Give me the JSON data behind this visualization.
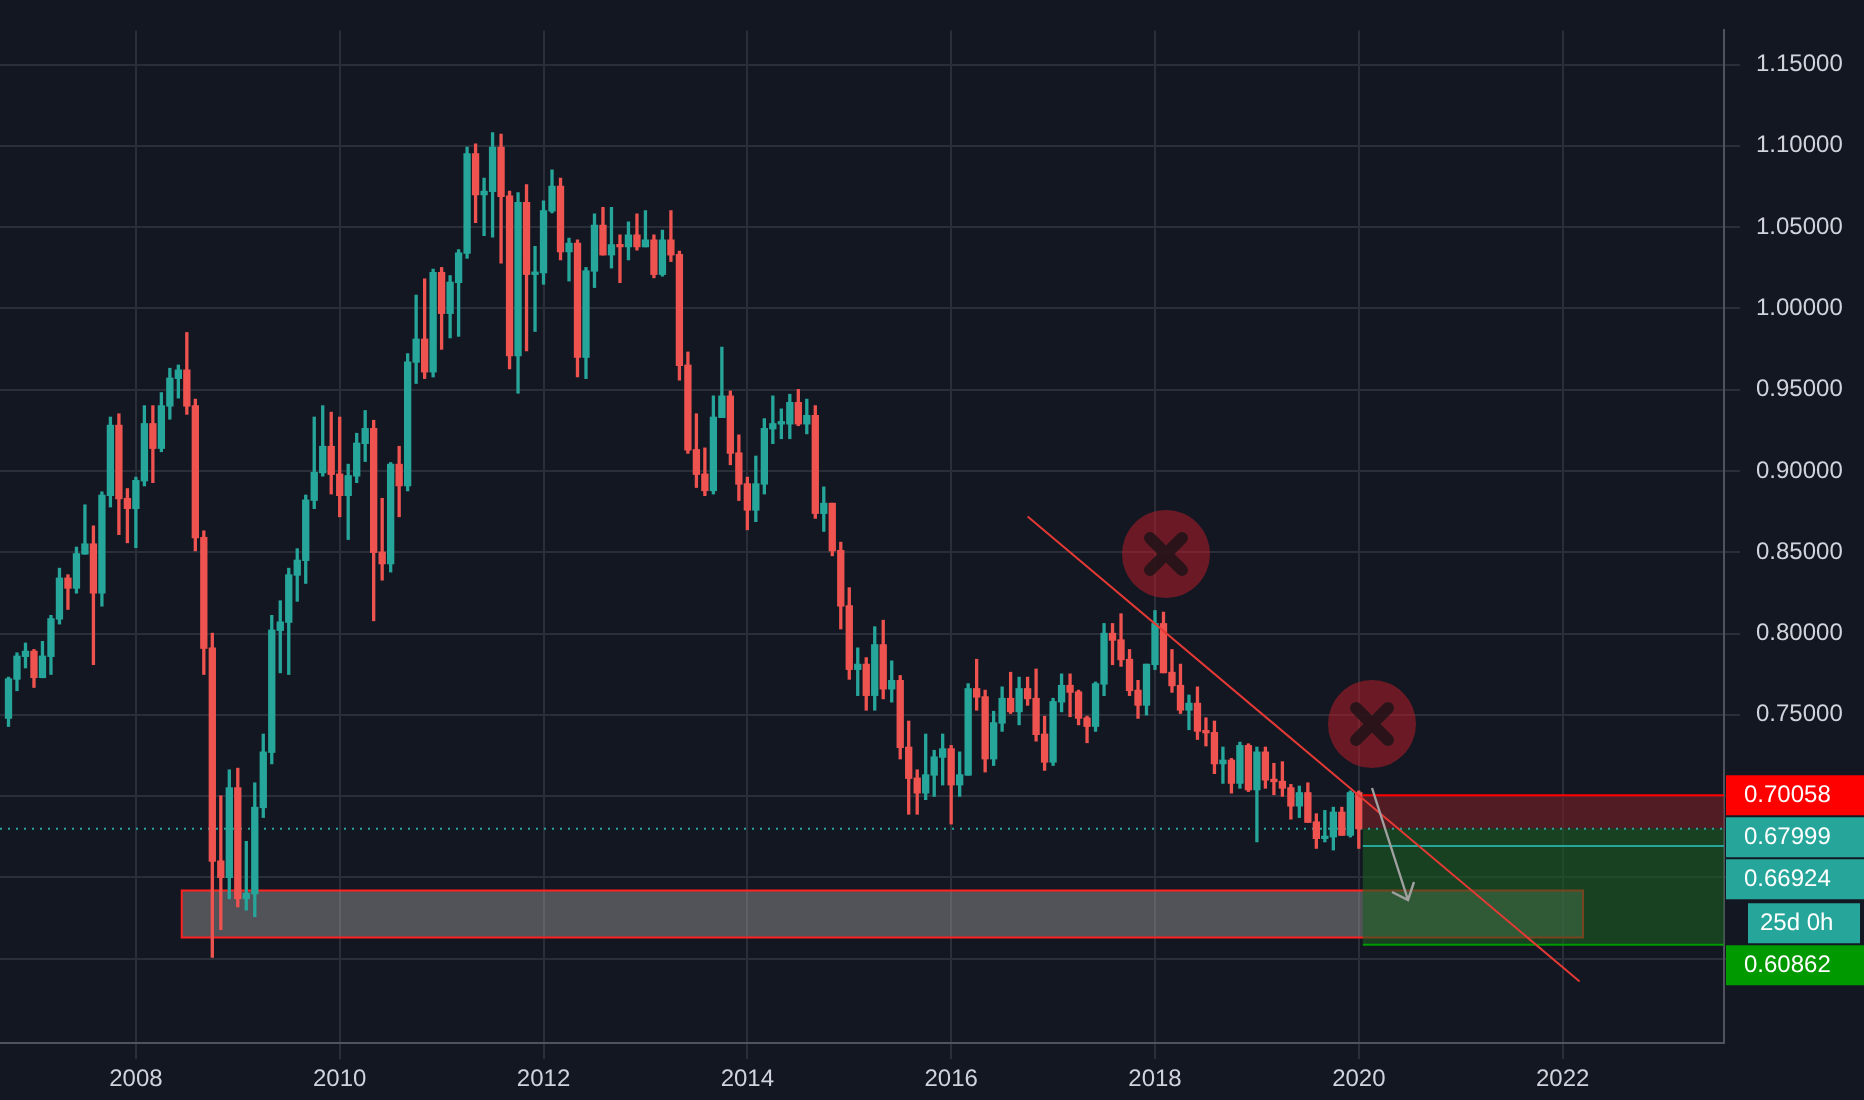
{
  "chart_data": {
    "type": "candlestick",
    "x": [
      "2006-10",
      "2006-11",
      "2006-12",
      "2007-01",
      "2007-02",
      "2007-03",
      "2007-04",
      "2007-05",
      "2007-06",
      "2007-07",
      "2007-08",
      "2007-09",
      "2007-10",
      "2007-11",
      "2007-12",
      "2008-01",
      "2008-02",
      "2008-03",
      "2008-04",
      "2008-05",
      "2008-06",
      "2008-07",
      "2008-08",
      "2008-09",
      "2008-10",
      "2008-11",
      "2008-12",
      "2009-01",
      "2009-02",
      "2009-03",
      "2009-04",
      "2009-05",
      "2009-06",
      "2009-07",
      "2009-08",
      "2009-09",
      "2009-10",
      "2009-11",
      "2009-12",
      "2010-01",
      "2010-02",
      "2010-03",
      "2010-04",
      "2010-05",
      "2010-06",
      "2010-07",
      "2010-08",
      "2010-09",
      "2010-10",
      "2010-11",
      "2010-12",
      "2011-01",
      "2011-02",
      "2011-03",
      "2011-04",
      "2011-05",
      "2011-06",
      "2011-07",
      "2011-08",
      "2011-09",
      "2011-10",
      "2011-11",
      "2011-12",
      "2012-01",
      "2012-02",
      "2012-03",
      "2012-04",
      "2012-05",
      "2012-06",
      "2012-07",
      "2012-08",
      "2012-09",
      "2012-10",
      "2012-11",
      "2012-12",
      "2013-01",
      "2013-02",
      "2013-03",
      "2013-04",
      "2013-05",
      "2013-06",
      "2013-07",
      "2013-08",
      "2013-09",
      "2013-10",
      "2013-11",
      "2013-12",
      "2014-01",
      "2014-02",
      "2014-03",
      "2014-04",
      "2014-05",
      "2014-06",
      "2014-07",
      "2014-08",
      "2014-09",
      "2014-10",
      "2014-11",
      "2014-12",
      "2015-01",
      "2015-02",
      "2015-03",
      "2015-04",
      "2015-05",
      "2015-06",
      "2015-07",
      "2015-08",
      "2015-09",
      "2015-10",
      "2015-11",
      "2015-12",
      "2016-01",
      "2016-02",
      "2016-03",
      "2016-04",
      "2016-05",
      "2016-06",
      "2016-07",
      "2016-08",
      "2016-09",
      "2016-10",
      "2016-11",
      "2016-12",
      "2017-01",
      "2017-02",
      "2017-03",
      "2017-04",
      "2017-05",
      "2017-06",
      "2017-07",
      "2017-08",
      "2017-09",
      "2017-10",
      "2017-11",
      "2017-12",
      "2018-01",
      "2018-02",
      "2018-03",
      "2018-04",
      "2018-05",
      "2018-06",
      "2018-07",
      "2018-08",
      "2018-09",
      "2018-10",
      "2018-11",
      "2018-12",
      "2019-01",
      "2019-02",
      "2019-03",
      "2019-04",
      "2019-05",
      "2019-06",
      "2019-07",
      "2019-08",
      "2019-09",
      "2019-10",
      "2019-11",
      "2019-12",
      "2020-01"
    ],
    "ohlc": [
      [
        0.748,
        0.773,
        0.743,
        0.772
      ],
      [
        0.772,
        0.788,
        0.765,
        0.786
      ],
      [
        0.786,
        0.794,
        0.779,
        0.789
      ],
      [
        0.789,
        0.79,
        0.767,
        0.773
      ],
      [
        0.773,
        0.795,
        0.773,
        0.786
      ],
      [
        0.786,
        0.811,
        0.775,
        0.809
      ],
      [
        0.809,
        0.84,
        0.806,
        0.834
      ],
      [
        0.834,
        0.836,
        0.815,
        0.828
      ],
      [
        0.828,
        0.853,
        0.825,
        0.849
      ],
      [
        0.849,
        0.879,
        0.849,
        0.855
      ],
      [
        0.855,
        0.866,
        0.781,
        0.825
      ],
      [
        0.825,
        0.887,
        0.817,
        0.885
      ],
      [
        0.885,
        0.933,
        0.878,
        0.928
      ],
      [
        0.928,
        0.935,
        0.861,
        0.883
      ],
      [
        0.883,
        0.889,
        0.856,
        0.877
      ],
      [
        0.877,
        0.896,
        0.853,
        0.894
      ],
      [
        0.894,
        0.94,
        0.891,
        0.929
      ],
      [
        0.929,
        0.94,
        0.893,
        0.914
      ],
      [
        0.914,
        0.948,
        0.912,
        0.94
      ],
      [
        0.94,
        0.963,
        0.932,
        0.957
      ],
      [
        0.957,
        0.965,
        0.945,
        0.962
      ],
      [
        0.962,
        0.985,
        0.935,
        0.94
      ],
      [
        0.94,
        0.944,
        0.851,
        0.859
      ],
      [
        0.859,
        0.863,
        0.775,
        0.791
      ],
      [
        0.791,
        0.8,
        0.601,
        0.66
      ],
      [
        0.66,
        0.7,
        0.618,
        0.65
      ],
      [
        0.65,
        0.716,
        0.637,
        0.705
      ],
      [
        0.705,
        0.717,
        0.632,
        0.637
      ],
      [
        0.637,
        0.672,
        0.63,
        0.64
      ],
      [
        0.64,
        0.708,
        0.626,
        0.693
      ],
      [
        0.693,
        0.738,
        0.687,
        0.727
      ],
      [
        0.727,
        0.811,
        0.72,
        0.802
      ],
      [
        0.802,
        0.82,
        0.776,
        0.807
      ],
      [
        0.807,
        0.84,
        0.775,
        0.836
      ],
      [
        0.836,
        0.852,
        0.82,
        0.845
      ],
      [
        0.845,
        0.885,
        0.831,
        0.882
      ],
      [
        0.882,
        0.933,
        0.877,
        0.899
      ],
      [
        0.899,
        0.94,
        0.897,
        0.915
      ],
      [
        0.915,
        0.936,
        0.886,
        0.898
      ],
      [
        0.898,
        0.933,
        0.872,
        0.885
      ],
      [
        0.885,
        0.904,
        0.858,
        0.897
      ],
      [
        0.897,
        0.923,
        0.893,
        0.917
      ],
      [
        0.917,
        0.937,
        0.906,
        0.926
      ],
      [
        0.926,
        0.931,
        0.808,
        0.85
      ],
      [
        0.85,
        0.883,
        0.833,
        0.843
      ],
      [
        0.843,
        0.905,
        0.838,
        0.904
      ],
      [
        0.904,
        0.915,
        0.872,
        0.891
      ],
      [
        0.891,
        0.972,
        0.888,
        0.967
      ],
      [
        0.967,
        1.008,
        0.954,
        0.981
      ],
      [
        0.981,
        1.018,
        0.957,
        0.961
      ],
      [
        0.961,
        1.024,
        0.958,
        1.022
      ],
      [
        1.022,
        1.025,
        0.975,
        0.997
      ],
      [
        0.997,
        1.02,
        0.982,
        1.016
      ],
      [
        1.016,
        1.036,
        0.983,
        1.034
      ],
      [
        1.034,
        1.099,
        1.031,
        1.095
      ],
      [
        1.095,
        1.101,
        1.053,
        1.07
      ],
      [
        1.07,
        1.08,
        1.045,
        1.072
      ],
      [
        1.072,
        1.108,
        1.044,
        1.099
      ],
      [
        1.099,
        1.107,
        1.028,
        1.069
      ],
      [
        1.069,
        1.072,
        0.963,
        0.971
      ],
      [
        0.971,
        1.071,
        0.948,
        1.065
      ],
      [
        1.065,
        1.076,
        0.974,
        1.021
      ],
      [
        1.021,
        1.038,
        0.986,
        1.022
      ],
      [
        1.022,
        1.066,
        1.015,
        1.06
      ],
      [
        1.06,
        1.085,
        1.059,
        1.075
      ],
      [
        1.075,
        1.08,
        1.03,
        1.035
      ],
      [
        1.035,
        1.043,
        1.017,
        1.04
      ],
      [
        1.04,
        1.042,
        0.958,
        0.97
      ],
      [
        0.97,
        1.025,
        0.957,
        1.023
      ],
      [
        1.023,
        1.058,
        1.013,
        1.051
      ],
      [
        1.051,
        1.062,
        1.033,
        1.033
      ],
      [
        1.033,
        1.062,
        1.025,
        1.039
      ],
      [
        1.039,
        1.045,
        1.016,
        1.038
      ],
      [
        1.038,
        1.053,
        1.03,
        1.045
      ],
      [
        1.045,
        1.058,
        1.036,
        1.038
      ],
      [
        1.038,
        1.06,
        1.038,
        1.042
      ],
      [
        1.042,
        1.045,
        1.019,
        1.021
      ],
      [
        1.021,
        1.048,
        1.02,
        1.042
      ],
      [
        1.042,
        1.06,
        1.029,
        1.033
      ],
      [
        1.033,
        1.035,
        0.956,
        0.965
      ],
      [
        0.965,
        0.973,
        0.911,
        0.913
      ],
      [
        0.913,
        0.935,
        0.89,
        0.898
      ],
      [
        0.898,
        0.914,
        0.885,
        0.888
      ],
      [
        0.888,
        0.946,
        0.886,
        0.933
      ],
      [
        0.933,
        0.976,
        0.933,
        0.946
      ],
      [
        0.946,
        0.949,
        0.904,
        0.911
      ],
      [
        0.911,
        0.922,
        0.882,
        0.892
      ],
      [
        0.892,
        0.896,
        0.864,
        0.876
      ],
      [
        0.876,
        0.909,
        0.869,
        0.892
      ],
      [
        0.892,
        0.932,
        0.886,
        0.926
      ],
      [
        0.926,
        0.946,
        0.917,
        0.929
      ],
      [
        0.929,
        0.938,
        0.92,
        0.929
      ],
      [
        0.929,
        0.947,
        0.92,
        0.942
      ],
      [
        0.942,
        0.95,
        0.928,
        0.929
      ],
      [
        0.929,
        0.944,
        0.923,
        0.934
      ],
      [
        0.934,
        0.94,
        0.871,
        0.874
      ],
      [
        0.874,
        0.89,
        0.863,
        0.88
      ],
      [
        0.88,
        0.88,
        0.848,
        0.851
      ],
      [
        0.851,
        0.856,
        0.803,
        0.817
      ],
      [
        0.817,
        0.828,
        0.772,
        0.778
      ],
      [
        0.778,
        0.791,
        0.762,
        0.781
      ],
      [
        0.781,
        0.785,
        0.753,
        0.762
      ],
      [
        0.762,
        0.804,
        0.753,
        0.793
      ],
      [
        0.793,
        0.808,
        0.76,
        0.766
      ],
      [
        0.766,
        0.783,
        0.758,
        0.771
      ],
      [
        0.771,
        0.774,
        0.723,
        0.73
      ],
      [
        0.73,
        0.746,
        0.689,
        0.711
      ],
      [
        0.711,
        0.716,
        0.689,
        0.702
      ],
      [
        0.702,
        0.738,
        0.698,
        0.713
      ],
      [
        0.713,
        0.728,
        0.7,
        0.724
      ],
      [
        0.724,
        0.738,
        0.707,
        0.729
      ],
      [
        0.729,
        0.731,
        0.683,
        0.707
      ],
      [
        0.707,
        0.727,
        0.7,
        0.713
      ],
      [
        0.713,
        0.769,
        0.713,
        0.766
      ],
      [
        0.766,
        0.784,
        0.753,
        0.761
      ],
      [
        0.761,
        0.765,
        0.715,
        0.723
      ],
      [
        0.723,
        0.752,
        0.719,
        0.745
      ],
      [
        0.745,
        0.767,
        0.74,
        0.76
      ],
      [
        0.76,
        0.776,
        0.751,
        0.752
      ],
      [
        0.752,
        0.773,
        0.744,
        0.766
      ],
      [
        0.766,
        0.773,
        0.756,
        0.76
      ],
      [
        0.76,
        0.778,
        0.734,
        0.738
      ],
      [
        0.738,
        0.749,
        0.716,
        0.721
      ],
      [
        0.721,
        0.76,
        0.719,
        0.758
      ],
      [
        0.758,
        0.775,
        0.752,
        0.768
      ],
      [
        0.768,
        0.775,
        0.749,
        0.764
      ],
      [
        0.764,
        0.765,
        0.744,
        0.748
      ],
      [
        0.748,
        0.749,
        0.733,
        0.743
      ],
      [
        0.743,
        0.77,
        0.74,
        0.769
      ],
      [
        0.769,
        0.806,
        0.762,
        0.8
      ],
      [
        0.8,
        0.806,
        0.781,
        0.796
      ],
      [
        0.796,
        0.812,
        0.78,
        0.784
      ],
      [
        0.784,
        0.79,
        0.762,
        0.765
      ],
      [
        0.765,
        0.771,
        0.748,
        0.756
      ],
      [
        0.756,
        0.781,
        0.75,
        0.781
      ],
      [
        0.781,
        0.814,
        0.778,
        0.806
      ],
      [
        0.806,
        0.813,
        0.776,
        0.776
      ],
      [
        0.776,
        0.79,
        0.764,
        0.768
      ],
      [
        0.768,
        0.781,
        0.751,
        0.753
      ],
      [
        0.753,
        0.762,
        0.741,
        0.757
      ],
      [
        0.757,
        0.767,
        0.735,
        0.74
      ],
      [
        0.74,
        0.748,
        0.731,
        0.739
      ],
      [
        0.739,
        0.746,
        0.714,
        0.72
      ],
      [
        0.72,
        0.73,
        0.708,
        0.722
      ],
      [
        0.722,
        0.723,
        0.702,
        0.708
      ],
      [
        0.708,
        0.733,
        0.705,
        0.731
      ],
      [
        0.731,
        0.732,
        0.703,
        0.704
      ],
      [
        0.704,
        0.73,
        0.672,
        0.727
      ],
      [
        0.727,
        0.73,
        0.705,
        0.71
      ],
      [
        0.71,
        0.72,
        0.701,
        0.709
      ],
      [
        0.709,
        0.721,
        0.7,
        0.705
      ],
      [
        0.705,
        0.707,
        0.686,
        0.694
      ],
      [
        0.694,
        0.706,
        0.687,
        0.702
      ],
      [
        0.702,
        0.708,
        0.684,
        0.684
      ],
      [
        0.684,
        0.689,
        0.668,
        0.674
      ],
      [
        0.674,
        0.691,
        0.672,
        0.675
      ],
      [
        0.675,
        0.693,
        0.667,
        0.69
      ],
      [
        0.69,
        0.693,
        0.676,
        0.676
      ],
      [
        0.676,
        0.703,
        0.675,
        0.702
      ],
      [
        0.702,
        0.703,
        0.668,
        0.68
      ]
    ],
    "series": [
      {
        "type": "line",
        "color": "#e53935",
        "x": [
          "2016-10",
          "2022-03"
        ],
        "values": [
          0.872,
          0.586
        ]
      }
    ],
    "xlim": [
      "2006-09",
      "2023-08"
    ],
    "xticks": [
      "2008",
      "2010",
      "2012",
      "2014",
      "2016",
      "2018",
      "2020",
      "2022"
    ],
    "ylim": [
      0.548,
      1.171
    ],
    "yticks": [
      {
        "value": 0.6,
        "label": null
      },
      {
        "value": 0.65,
        "label": null
      },
      {
        "value": 0.7,
        "label": null
      },
      {
        "value": 0.75,
        "label": "0.75000"
      },
      {
        "value": 0.8,
        "label": "0.80000"
      },
      {
        "value": 0.85,
        "label": "0.85000"
      },
      {
        "value": 0.9,
        "label": "0.90000"
      },
      {
        "value": 0.95,
        "label": "0.95000"
      },
      {
        "value": 1.0,
        "label": "1.00000"
      },
      {
        "value": 1.05,
        "label": "1.05000"
      },
      {
        "value": 1.1,
        "label": "1.10000"
      },
      {
        "value": 1.15,
        "label": "1.15000"
      }
    ],
    "grid": true,
    "legend": false,
    "marker": "none",
    "ref_lines": [
      {
        "axis": "y",
        "value": 0.70058,
        "label": "0.70058",
        "color": "#ff0000"
      },
      {
        "axis": "y",
        "value": 0.67999,
        "label": "0.67999",
        "color": "#26a69a",
        "line_style": "dotted"
      },
      {
        "axis": "y",
        "value": 0.66924,
        "label": "0.66924",
        "color": "#26a69a"
      },
      {
        "axis": "y",
        "value": 0.60862,
        "label": "0.60862",
        "color": "#009900"
      }
    ],
    "bands": [
      {
        "axis": "y",
        "from": 0.613,
        "to": 0.642,
        "color": "#9e9e9e"
      },
      {
        "axis": "y",
        "from": 0.68,
        "to": 0.70058,
        "color": "#7b1f24"
      },
      {
        "axis": "y",
        "from": 0.60862,
        "to": 0.68,
        "color": "#1b5e20"
      }
    ],
    "annotations": [
      "25d 0h"
    ]
  }
}
